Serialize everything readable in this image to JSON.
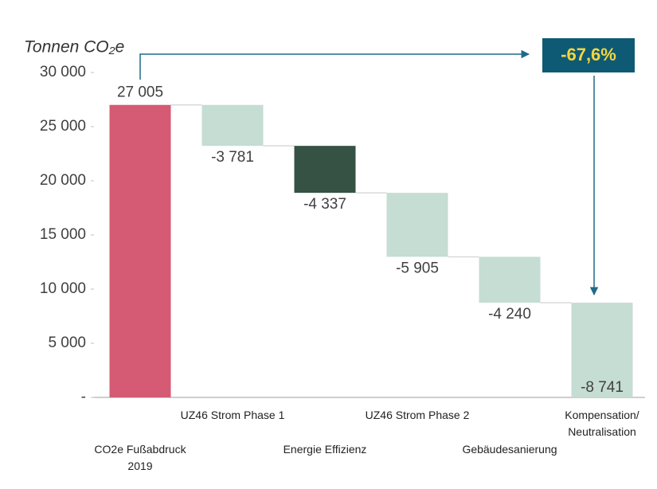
{
  "chart_data": {
    "type": "waterfall",
    "title": "Tonnen CO₂e",
    "categories": [
      "CO2e Fußabdruck\n2019",
      "UZ46 Strom Phase 1",
      "Energie Effizienz",
      "UZ46 Strom Phase 2",
      "Gebäudesanierung",
      "Kompensation/\nNeutralisation"
    ],
    "values": [
      27005,
      -3781,
      -4337,
      -5905,
      -4240,
      -8741
    ],
    "value_labels": [
      "27 005",
      "-3 781",
      "-4 337",
      "-5 905",
      "-4 240",
      "-8 741"
    ],
    "colors": [
      "#d45b73",
      "#c5ddd2",
      "#355244",
      "#c5ddd2",
      "#c5ddd2",
      "#c5ddd2"
    ],
    "ylim": [
      0,
      30000
    ],
    "yticks": [
      {
        "value": 0,
        "label": "-"
      },
      {
        "value": 5000,
        "label": "5 000"
      },
      {
        "value": 10000,
        "label": "10 000"
      },
      {
        "value": 15000,
        "label": "15 000"
      },
      {
        "value": 20000,
        "label": "20 000"
      },
      {
        "value": 25000,
        "label": "25 000"
      },
      {
        "value": 30000,
        "label": "30 000"
      }
    ],
    "annotation": "-67,6%"
  }
}
